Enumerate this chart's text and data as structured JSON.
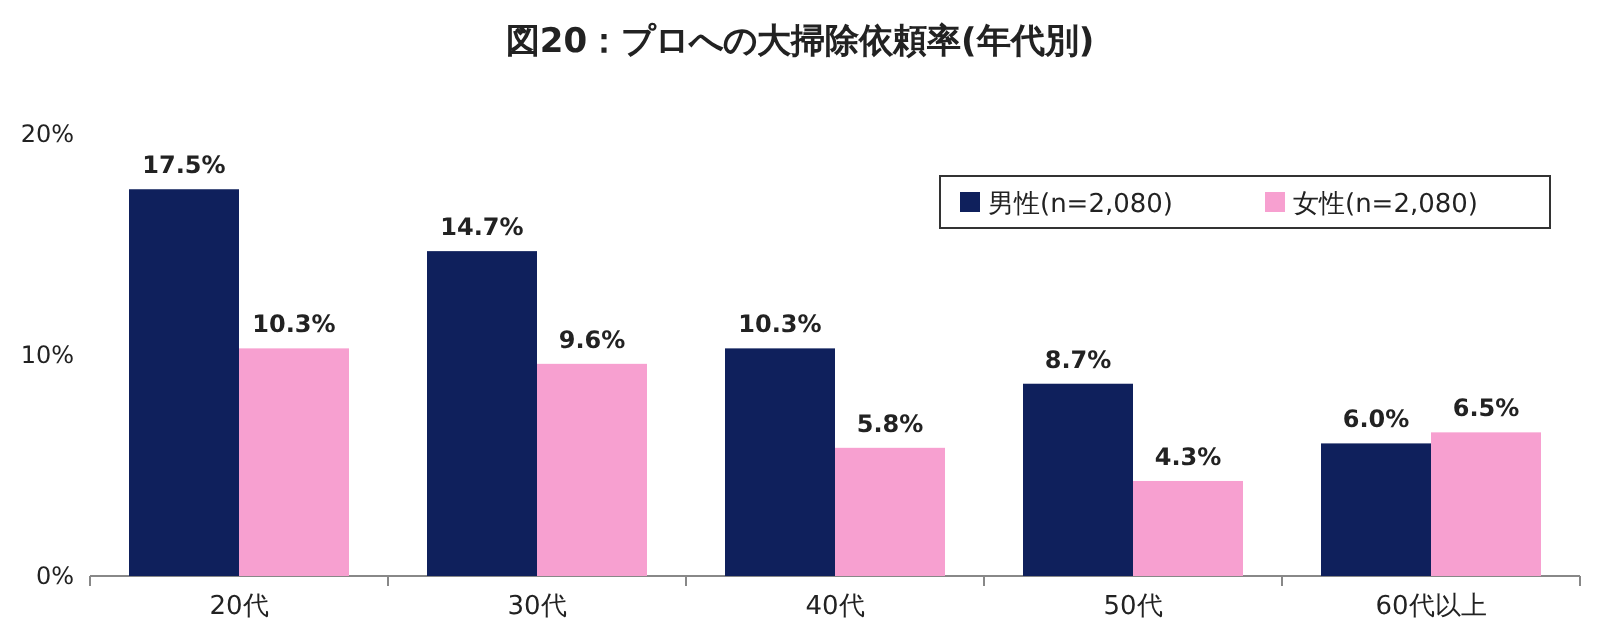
{
  "chart_data": {
    "type": "bar",
    "title": "図20：プロへの大掃除依頼率(年代別)",
    "categories": [
      "20代",
      "30代",
      "40代",
      "50代",
      "60代以上"
    ],
    "series": [
      {
        "name": "男性(n=2,080)",
        "color": "#0f205c",
        "values": [
          17.5,
          14.7,
          10.3,
          8.7,
          6.0
        ],
        "value_labels": [
          "17.5%",
          "14.7%",
          "10.3%",
          "8.7%",
          "6.0%"
        ]
      },
      {
        "name": "女性(n=2,080)",
        "color": "#f7a0d0",
        "values": [
          10.3,
          9.6,
          5.8,
          4.3,
          6.5
        ],
        "value_labels": [
          "10.3%",
          "9.6%",
          "5.8%",
          "4.3%",
          "6.5%"
        ]
      }
    ],
    "ylim": [
      0,
      20
    ],
    "yticks": [
      {
        "value": 0,
        "label": "0%"
      },
      {
        "value": 10,
        "label": "10%"
      },
      {
        "value": 20,
        "label": "20%"
      }
    ],
    "grid": false,
    "legend": "top right"
  }
}
